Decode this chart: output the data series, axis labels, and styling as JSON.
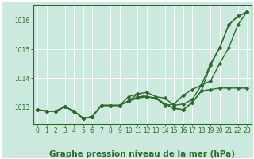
{
  "x": [
    0,
    1,
    2,
    3,
    4,
    5,
    6,
    7,
    8,
    9,
    10,
    11,
    12,
    13,
    14,
    15,
    16,
    17,
    18,
    19,
    20,
    21,
    22,
    23
  ],
  "series": [
    [
      1012.9,
      1012.85,
      1012.85,
      1013.0,
      1012.85,
      1012.6,
      1012.65,
      1013.05,
      1013.05,
      1013.05,
      1013.2,
      1013.35,
      1013.35,
      1013.3,
      1013.1,
      1012.95,
      1012.9,
      1013.15,
      1013.55,
      1014.45,
      1015.05,
      1015.85,
      1016.15,
      1016.3
    ],
    [
      1012.9,
      1012.85,
      1012.85,
      1013.0,
      1012.85,
      1012.6,
      1012.65,
      1013.05,
      1013.05,
      1013.05,
      1013.2,
      1013.3,
      1013.35,
      1013.3,
      1013.1,
      1012.95,
      1012.9,
      1013.15,
      1013.55,
      1013.6,
      1013.65,
      1013.65,
      1013.65,
      1013.65
    ],
    [
      1012.9,
      1012.85,
      1012.85,
      1013.0,
      1012.85,
      1012.6,
      1012.65,
      1013.05,
      1013.05,
      1013.05,
      1013.2,
      1013.45,
      1013.5,
      1013.35,
      1013.3,
      1013.05,
      1013.1,
      1013.25,
      1013.75,
      1014.5,
      1015.05,
      1015.85,
      1016.15,
      1016.3
    ],
    [
      1012.9,
      1012.85,
      1012.85,
      1013.0,
      1012.85,
      1012.6,
      1012.65,
      1013.05,
      1013.05,
      1013.05,
      1013.35,
      1013.45,
      1013.35,
      1013.3,
      1013.05,
      1013.1,
      1013.4,
      1013.6,
      1013.75,
      1013.9,
      1014.5,
      1015.05,
      1015.85,
      1016.3
    ]
  ],
  "line_color": "#2d6a2d",
  "line_width": 1.0,
  "marker": "D",
  "marker_size": 2.5,
  "bg_color": "#cce9dd",
  "plot_bg_color": "#cce9dd",
  "grid_color": "#ffffff",
  "xlabel": "Graphe pression niveau de la mer (hPa)",
  "ylim": [
    1012.4,
    1016.55
  ],
  "xlim": [
    -0.5,
    23.5
  ],
  "yticks": [
    1013,
    1014,
    1015,
    1016
  ],
  "xticks": [
    0,
    1,
    2,
    3,
    4,
    5,
    6,
    7,
    8,
    9,
    10,
    11,
    12,
    13,
    14,
    15,
    16,
    17,
    18,
    19,
    20,
    21,
    22,
    23
  ],
  "tick_label_fontsize": 5.5,
  "xlabel_fontsize": 7.5
}
